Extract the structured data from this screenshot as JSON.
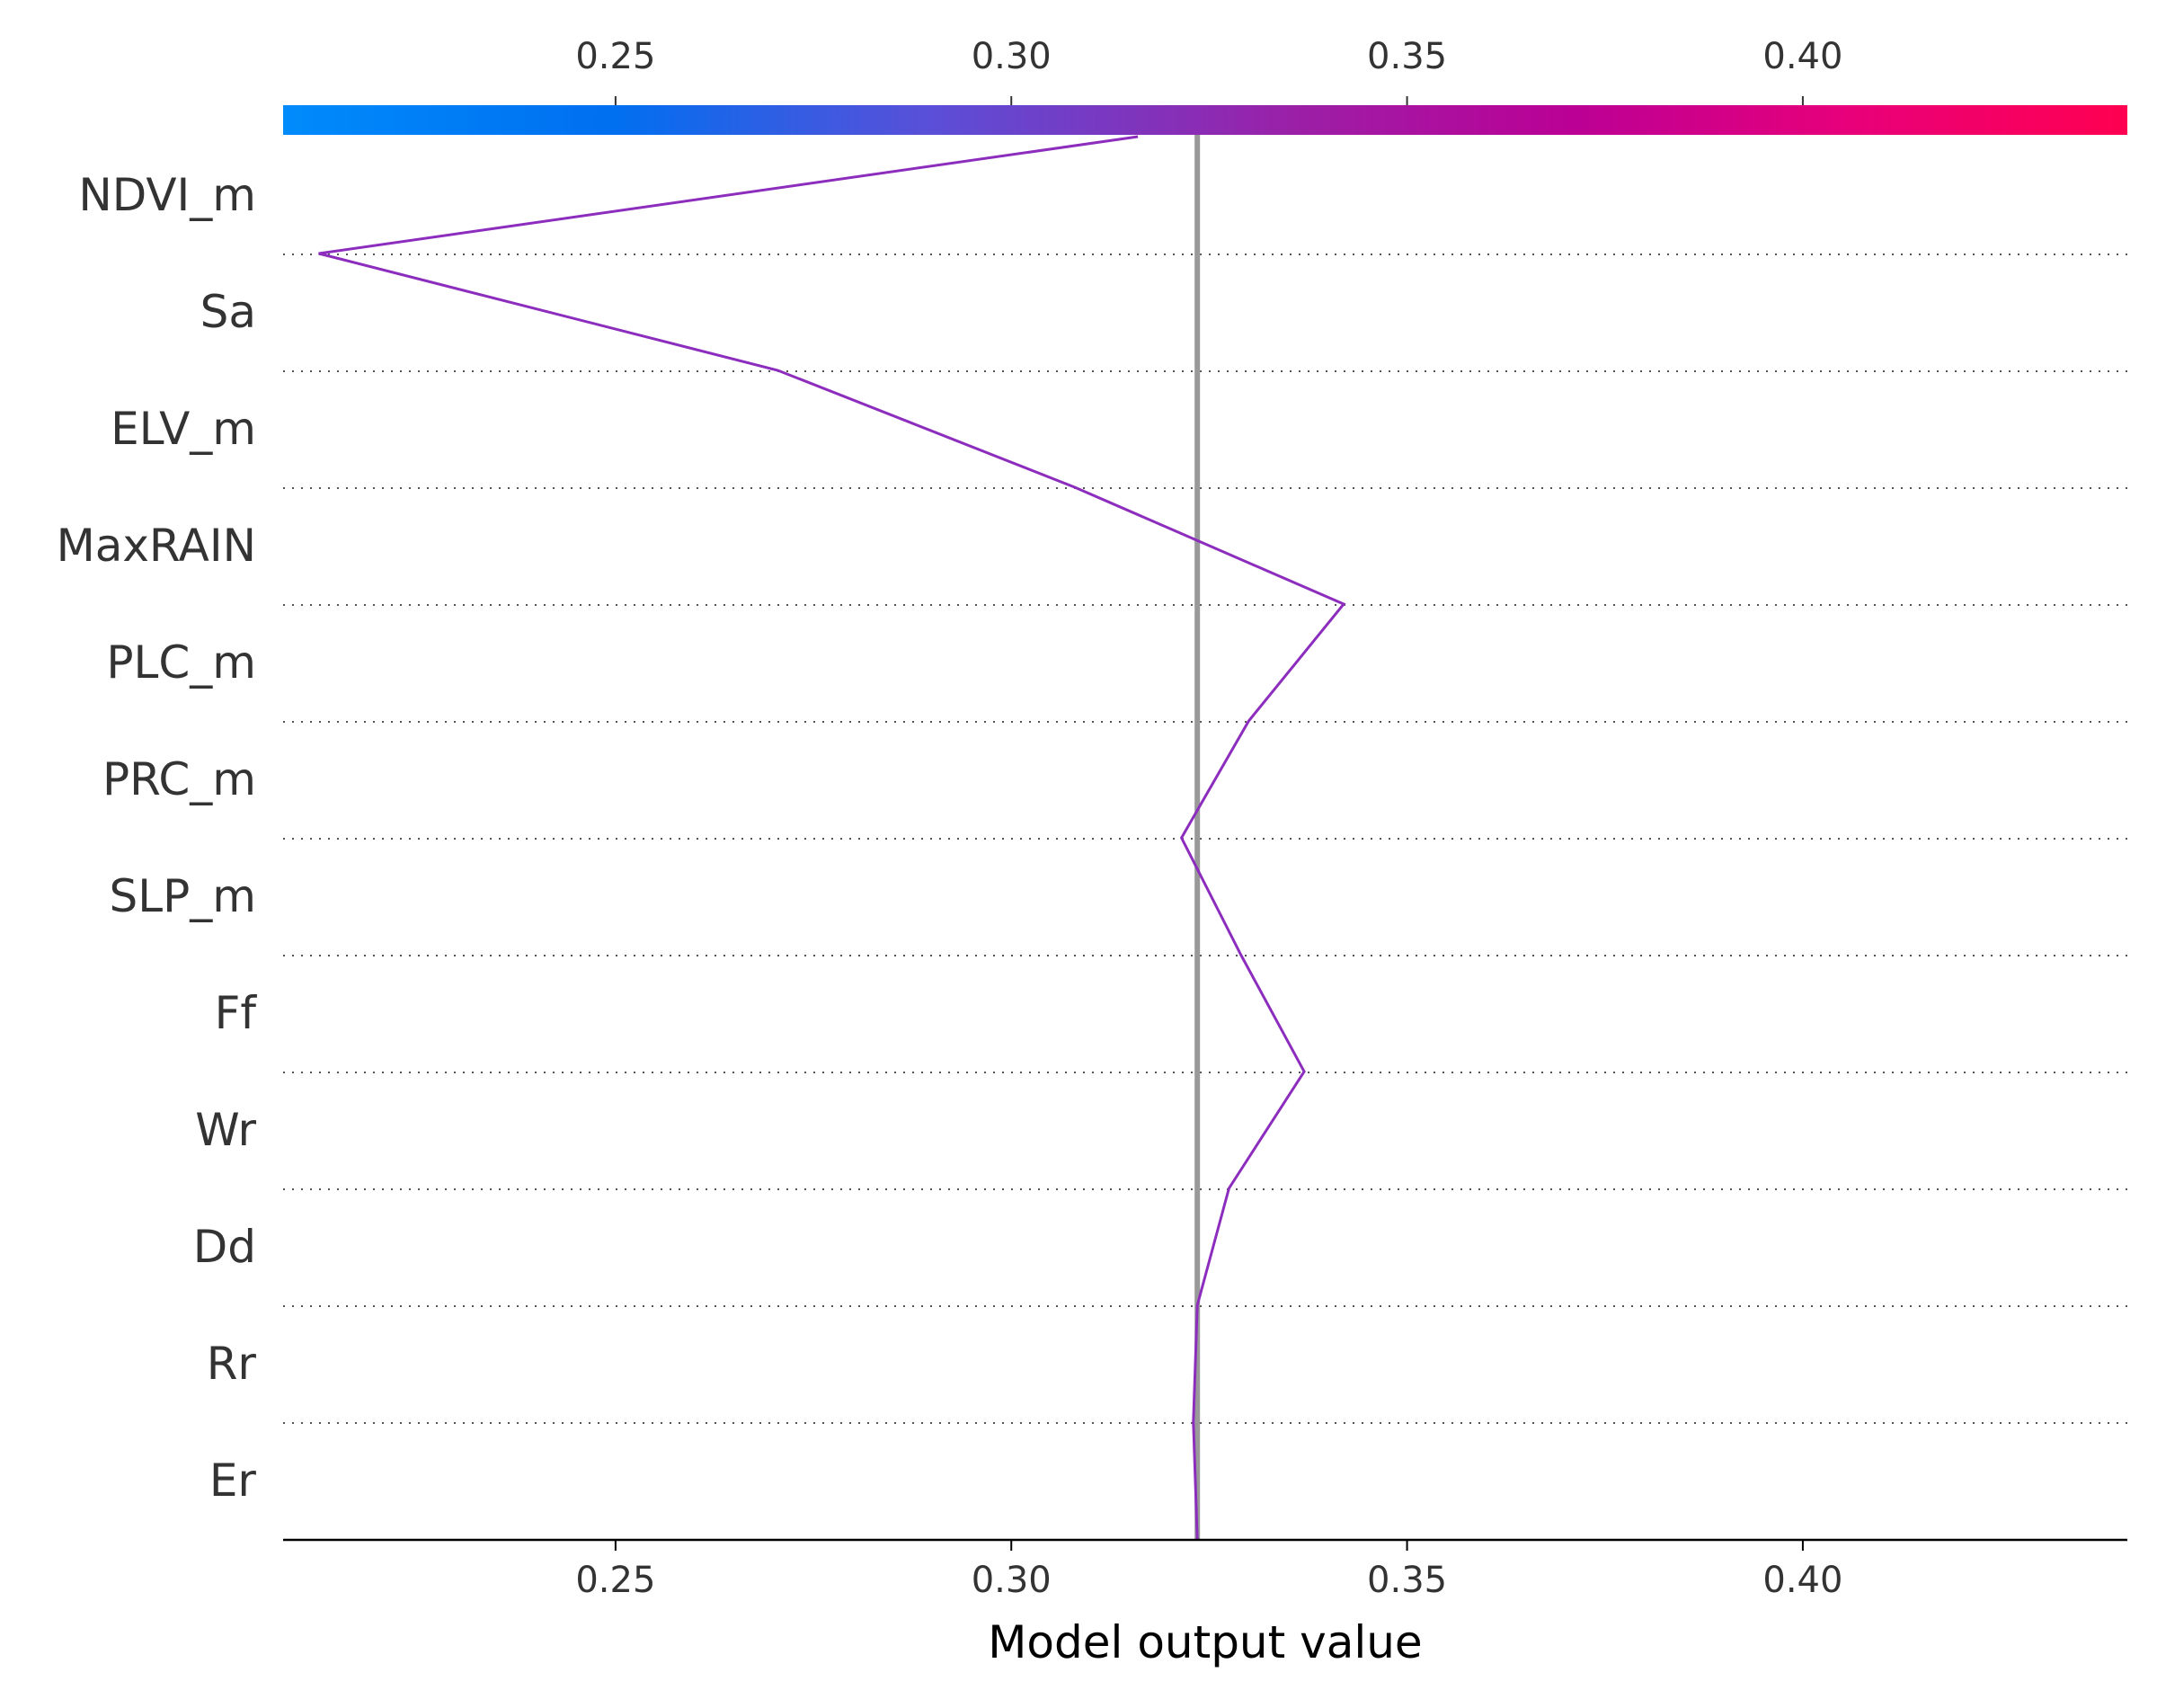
{
  "chart_data": {
    "type": "line",
    "subtype": "shap-decision-plot",
    "xlabel": "Model output value",
    "ylabel": "",
    "title": "",
    "xlim": [
      0.208,
      0.441
    ],
    "base_value": 0.3235,
    "x_ticks": [
      {
        "value": 0.25,
        "label": "0.25"
      },
      {
        "value": 0.3,
        "label": "0.30"
      },
      {
        "value": 0.35,
        "label": "0.35"
      },
      {
        "value": 0.4,
        "label": "0.40"
      }
    ],
    "features": [
      "NDVI_m",
      "Sa",
      "ELV_m",
      "MaxRAIN",
      "PLC_m",
      "PRC_m",
      "SLP_m",
      "Ff",
      "Wr",
      "Dd",
      "Rr",
      "Er"
    ],
    "path": [
      0.316,
      0.2125,
      0.2705,
      0.308,
      0.342,
      0.33,
      0.3215,
      0.329,
      0.337,
      0.3275,
      0.3235,
      0.323,
      0.3235
    ],
    "colormap": {
      "low": "#008bfb",
      "mid": "#9c1fa7",
      "high": "#ff0051"
    },
    "line_color": "#8c2dbe",
    "base_line_color": "#999999"
  }
}
